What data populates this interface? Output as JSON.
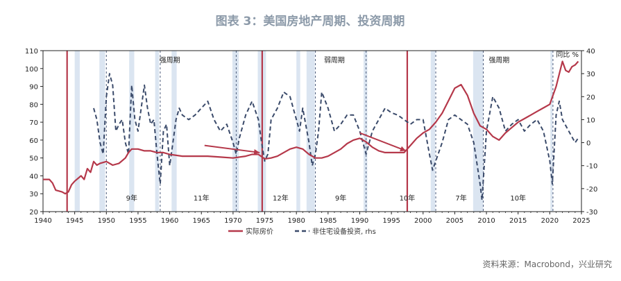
{
  "title": "图表 3：美国房地产周期、投资周期",
  "source": "资料来源：Macrobond，兴业研究",
  "colors": {
    "house_price": "#b5384a",
    "investment": "#3a4a6a",
    "recession": "#dbe5f1",
    "title": "#8c9aa9",
    "arrow": "#b5384a",
    "cycle_divider": "#4a5a7a"
  },
  "chart_data": {
    "type": "line",
    "x_range": [
      1940,
      2025
    ],
    "x_ticks": [
      1940,
      1945,
      1950,
      1955,
      1960,
      1965,
      1970,
      1975,
      1980,
      1985,
      1990,
      1995,
      2000,
      2005,
      2010,
      2015,
      2020,
      2025
    ],
    "y_left": {
      "range": [
        20,
        110
      ],
      "ticks": [
        20,
        30,
        40,
        50,
        60,
        70,
        80,
        90,
        100,
        110
      ]
    },
    "y_right": {
      "label": "同比 %",
      "range": [
        -30,
        40
      ],
      "ticks": [
        -30,
        -20,
        -10,
        0,
        10,
        20,
        30,
        40
      ]
    },
    "legend": {
      "position": "bottom",
      "entries": [
        "实际房价",
        "非住宅设备投资, rhs"
      ]
    },
    "recessions": [
      [
        1945,
        1945.8
      ],
      [
        1948.9,
        1949.8
      ],
      [
        1953.6,
        1954.4
      ],
      [
        1957.7,
        1958.3
      ],
      [
        1960.3,
        1961.1
      ],
      [
        1969.9,
        1970.9
      ],
      [
        1973.9,
        1975.2
      ],
      [
        1980,
        1980.6
      ],
      [
        1981.6,
        1982.9
      ],
      [
        1990.6,
        1991.2
      ],
      [
        2001.2,
        2001.9
      ],
      [
        2007.9,
        2009.5
      ],
      [
        2020.1,
        2020.4
      ]
    ],
    "main_cycle_markers": [
      1943.8,
      1974.6,
      1997.5
    ],
    "sub_cycle_markers": [
      1950,
      1958.5,
      1970.5,
      1983,
      1991,
      2002,
      2009.5,
      2020.5
    ],
    "cycle_phases": [
      {
        "label": "强周期",
        "x": 1960
      },
      {
        "label": "弱周期",
        "x": 1986
      },
      {
        "label": "强周期",
        "x": 2012
      }
    ],
    "cycle_durations": [
      {
        "label": "9年",
        "x": 1954
      },
      {
        "label": "11年",
        "x": 1965
      },
      {
        "label": "12年",
        "x": 1977.5
      },
      {
        "label": "9年",
        "x": 1987
      },
      {
        "label": "10年",
        "x": 1997.5
      },
      {
        "label": "7年",
        "x": 2006
      },
      {
        "label": "10年",
        "x": 2015
      }
    ],
    "arrows": [
      {
        "from": [
          1965.5,
          57
        ],
        "to": [
          1974.2,
          53
        ]
      },
      {
        "from": [
          1990,
          64
        ],
        "to": [
          1997.3,
          54
        ]
      }
    ],
    "series": [
      {
        "name": "实际房价",
        "axis": "left",
        "x": [
          1940,
          1941,
          1941.5,
          1942,
          1943,
          1943.5,
          1944,
          1944.5,
          1945,
          1946,
          1946.5,
          1947,
          1947.5,
          1948,
          1948.5,
          1949,
          1950,
          1951,
          1952,
          1953,
          1953.5,
          1954,
          1955,
          1956,
          1957,
          1958,
          1959,
          1960,
          1962,
          1964,
          1966,
          1968,
          1970,
          1972,
          1973,
          1974,
          1975,
          1976,
          1977,
          1978,
          1979,
          1980,
          1981,
          1982,
          1983,
          1984,
          1985,
          1986,
          1987,
          1988,
          1989,
          1990,
          1991,
          1992,
          1993,
          1994,
          1995,
          1996,
          1997,
          1998,
          1999,
          2000,
          2001,
          2002,
          2003,
          2004,
          2005,
          2006,
          2007,
          2008,
          2009,
          2010,
          2011,
          2012,
          2013,
          2014,
          2015,
          2016,
          2017,
          2018,
          2019,
          2020,
          2021,
          2022,
          2022.5,
          2023,
          2023.5,
          2024,
          2024.5
        ],
        "values": [
          38,
          38,
          36,
          32,
          31,
          30,
          31,
          35,
          37,
          40,
          38,
          44,
          42,
          48,
          46,
          47,
          48,
          46,
          47,
          50,
          53,
          55,
          55,
          54,
          54,
          53,
          53,
          52,
          51,
          51,
          51,
          50.5,
          50,
          51,
          52,
          52,
          49.5,
          50,
          51,
          53,
          55,
          56,
          55,
          52,
          50,
          50,
          51,
          53,
          55,
          58,
          60,
          61,
          59,
          56,
          54,
          53,
          53,
          53,
          53,
          57,
          61,
          64,
          66,
          70,
          75,
          82,
          89,
          91,
          85,
          75,
          68,
          66,
          62,
          60,
          64,
          67,
          70,
          72,
          74,
          76,
          78,
          80,
          90,
          104,
          99,
          98,
          101,
          102,
          104
        ]
      },
      {
        "name": "非住宅设备投资, rhs",
        "axis": "right",
        "x": [
          1948,
          1948.5,
          1949,
          1949.5,
          1950,
          1950.5,
          1951,
          1951.5,
          1952,
          1952.5,
          1953,
          1953.5,
          1954,
          1954.5,
          1955,
          1955.5,
          1956,
          1956.5,
          1957,
          1957.5,
          1958,
          1958.5,
          1959,
          1959.5,
          1960,
          1960.5,
          1961,
          1961.5,
          1962,
          1963,
          1964,
          1965,
          1966,
          1967,
          1968,
          1969,
          1970,
          1970.5,
          1971,
          1972,
          1973,
          1974,
          1974.5,
          1975,
          1975.5,
          1976,
          1977,
          1978,
          1979,
          1980,
          1980.5,
          1981,
          1982,
          1982.5,
          1983,
          1983.5,
          1984,
          1985,
          1986,
          1987,
          1988,
          1989,
          1990,
          1991,
          1992,
          1993,
          1994,
          1995,
          1996,
          1997,
          1998,
          1999,
          2000,
          2001,
          2001.5,
          2002,
          2003,
          2004,
          2005,
          2006,
          2007,
          2008,
          2009,
          2009.3,
          2010,
          2011,
          2012,
          2013,
          2014,
          2015,
          2016,
          2017,
          2018,
          2019,
          2020,
          2020.4,
          2021,
          2021.5,
          2022,
          2023,
          2024,
          2024.5
        ],
        "values": [
          15,
          10,
          0,
          -5,
          20,
          30,
          25,
          5,
          8,
          10,
          0,
          -5,
          25,
          10,
          5,
          15,
          25,
          15,
          8,
          10,
          -5,
          -18,
          5,
          8,
          -10,
          0,
          10,
          15,
          12,
          10,
          12,
          15,
          18,
          10,
          5,
          8,
          0,
          -5,
          2,
          12,
          18,
          10,
          0,
          -8,
          -5,
          10,
          15,
          22,
          20,
          10,
          5,
          15,
          0,
          -10,
          -5,
          5,
          22,
          15,
          5,
          8,
          12,
          12,
          5,
          -5,
          5,
          10,
          15,
          13,
          12,
          10,
          8,
          10,
          10,
          -5,
          -12,
          -8,
          0,
          10,
          12,
          10,
          8,
          0,
          -18,
          -25,
          5,
          20,
          15,
          5,
          8,
          10,
          5,
          8,
          10,
          5,
          -8,
          -18,
          12,
          18,
          10,
          5,
          0,
          2
        ]
      }
    ]
  }
}
